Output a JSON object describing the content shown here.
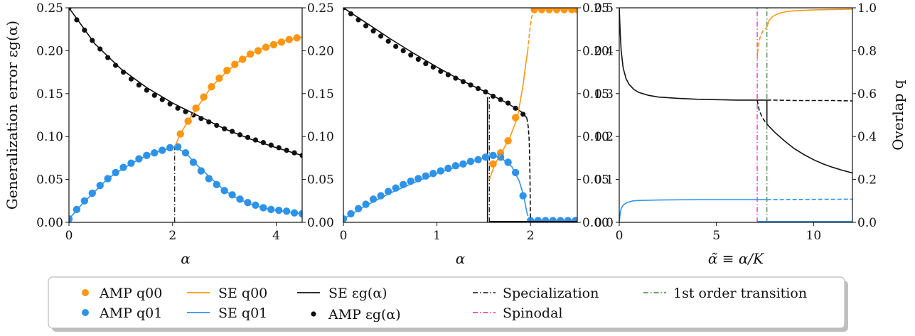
{
  "colors": {
    "orange": "#ff9610",
    "blue": "#2e93e8",
    "black": "#111111",
    "magenta": "#e020b0",
    "green": "#2f8a2f",
    "legend_border": "#bbbbbb"
  },
  "chart_data": [
    {
      "type": "line",
      "panel": "left",
      "xlabel": "α",
      "ylabel": "Generalization error εg(α)",
      "xlim": [
        0,
        4.5
      ],
      "ylim": [
        0,
        0.25
      ],
      "xticks": [
        "0",
        "2",
        "4"
      ],
      "xtick_values": [
        0,
        2,
        4
      ],
      "yticks": [
        "0.00",
        "0.05",
        "0.10",
        "0.15",
        "0.20",
        "0.25"
      ],
      "ytick_values": [
        0,
        0.05,
        0.1,
        0.15,
        0.2,
        0.25
      ],
      "right_yticks": [
        "0.00",
        "0.05",
        "0.10",
        "0.15",
        "0.20",
        "0.25"
      ],
      "specialization_x": 2.04,
      "series": [
        {
          "name": "AMP εg(α)",
          "kind": "points",
          "color": "black",
          "x": [
            0.0,
            0.15,
            0.3,
            0.45,
            0.6,
            0.75,
            0.9,
            1.05,
            1.2,
            1.35,
            1.5,
            1.65,
            1.8,
            1.95,
            2.1,
            2.25,
            2.4,
            2.55,
            2.7,
            2.85,
            3.0,
            3.15,
            3.3,
            3.45,
            3.6,
            3.75,
            3.9,
            4.05,
            4.2,
            4.35,
            4.5
          ],
          "y": [
            0.25,
            0.236,
            0.224,
            0.212,
            0.202,
            0.192,
            0.183,
            0.175,
            0.167,
            0.16,
            0.154,
            0.148,
            0.143,
            0.138,
            0.133,
            0.129,
            0.125,
            0.121,
            0.117,
            0.113,
            0.109,
            0.106,
            0.102,
            0.099,
            0.096,
            0.093,
            0.09,
            0.087,
            0.084,
            0.081,
            0.078
          ]
        },
        {
          "name": "AMP q00",
          "kind": "points",
          "color": "orange",
          "x": [
            2.15,
            2.3,
            2.45,
            2.6,
            2.75,
            2.9,
            3.05,
            3.2,
            3.35,
            3.5,
            3.65,
            3.8,
            3.95,
            4.1,
            4.25,
            4.4
          ],
          "y": [
            0.103,
            0.118,
            0.133,
            0.146,
            0.158,
            0.168,
            0.177,
            0.184,
            0.19,
            0.196,
            0.2,
            0.204,
            0.207,
            0.21,
            0.213,
            0.215
          ]
        },
        {
          "name": "AMP q01",
          "kind": "points",
          "color": "blue",
          "x": [
            0.0,
            0.15,
            0.3,
            0.45,
            0.6,
            0.75,
            0.9,
            1.05,
            1.2,
            1.35,
            1.5,
            1.65,
            1.8,
            1.95,
            2.1,
            2.25,
            2.4,
            2.55,
            2.7,
            2.85,
            3.0,
            3.15,
            3.3,
            3.45,
            3.6,
            3.75,
            3.9,
            4.05,
            4.2,
            4.35,
            4.5
          ],
          "y": [
            0.004,
            0.015,
            0.025,
            0.034,
            0.043,
            0.051,
            0.058,
            0.064,
            0.069,
            0.074,
            0.078,
            0.081,
            0.084,
            0.087,
            0.088,
            0.081,
            0.07,
            0.06,
            0.051,
            0.044,
            0.037,
            0.032,
            0.027,
            0.023,
            0.02,
            0.017,
            0.015,
            0.014,
            0.013,
            0.011,
            0.01
          ]
        },
        {
          "name": "SE εg(α)",
          "kind": "line",
          "color": "black",
          "x": [
            0,
            0.5,
            1.0,
            1.5,
            2.0,
            2.5,
            3.0,
            3.5,
            4.0,
            4.5
          ],
          "y": [
            0.25,
            0.208,
            0.179,
            0.157,
            0.139,
            0.124,
            0.109,
            0.097,
            0.087,
            0.078
          ]
        },
        {
          "name": "SE q00",
          "kind": "line",
          "color": "orange",
          "x": [
            2.04,
            2.15,
            2.3,
            2.5,
            2.75,
            3.0,
            3.25,
            3.5,
            3.75,
            4.0,
            4.25,
            4.5
          ],
          "y": [
            0.088,
            0.103,
            0.118,
            0.136,
            0.158,
            0.173,
            0.186,
            0.196,
            0.203,
            0.209,
            0.213,
            0.216
          ]
        },
        {
          "name": "SE q01",
          "kind": "line",
          "color": "blue",
          "x": [
            0,
            0.25,
            0.5,
            0.75,
            1.0,
            1.25,
            1.5,
            1.75,
            2.04,
            2.25,
            2.5,
            2.75,
            3.0,
            3.25,
            3.5,
            3.75,
            4.0,
            4.25,
            4.5
          ],
          "y": [
            0.004,
            0.021,
            0.036,
            0.051,
            0.061,
            0.07,
            0.078,
            0.083,
            0.088,
            0.081,
            0.065,
            0.051,
            0.037,
            0.028,
            0.021,
            0.017,
            0.014,
            0.012,
            0.01
          ]
        }
      ]
    },
    {
      "type": "line",
      "panel": "middle",
      "xlabel": "α",
      "xlim": [
        0,
        2.5
      ],
      "ylim": [
        0,
        0.25
      ],
      "xticks": [
        "0",
        "1",
        "2"
      ],
      "xtick_values": [
        0,
        1,
        2
      ],
      "right_yticks": [
        "0.00",
        "0.05",
        "0.10",
        "0.15",
        "0.20",
        "0.25"
      ],
      "specialization_x": 1.56,
      "transition_x": 1.54,
      "spinodal_x": 1.98,
      "series": [
        {
          "name": "AMP εg(α)",
          "kind": "points",
          "color": "black",
          "x": [
            0.0,
            0.08,
            0.16,
            0.24,
            0.32,
            0.4,
            0.48,
            0.56,
            0.64,
            0.72,
            0.8,
            0.88,
            0.96,
            1.04,
            1.12,
            1.2,
            1.28,
            1.36,
            1.44,
            1.52,
            1.6,
            1.68,
            1.76,
            1.84,
            1.92,
            2.0,
            2.08,
            2.16,
            2.24,
            2.32,
            2.4,
            2.48
          ],
          "y": [
            0.25,
            0.243,
            0.236,
            0.229,
            0.223,
            0.217,
            0.211,
            0.205,
            0.2,
            0.195,
            0.19,
            0.185,
            0.181,
            0.176,
            0.172,
            0.168,
            0.164,
            0.16,
            0.156,
            0.152,
            0.147,
            0.143,
            0.139,
            0.133,
            0.126,
            0.002,
            0.002,
            0.002,
            0.002,
            0.002,
            0.002,
            0.002
          ]
        },
        {
          "name": "AMP q00",
          "kind": "points",
          "color": "orange",
          "x": [
            1.6,
            1.68,
            1.76,
            1.84,
            2.04,
            2.12,
            2.2,
            2.28,
            2.36,
            2.44,
            2.5
          ],
          "y": [
            0.068,
            0.081,
            0.095,
            0.122,
            0.248,
            0.248,
            0.248,
            0.248,
            0.248,
            0.248,
            0.248
          ]
        },
        {
          "name": "AMP q01",
          "kind": "points",
          "color": "blue",
          "x": [
            0.0,
            0.08,
            0.16,
            0.24,
            0.32,
            0.4,
            0.48,
            0.56,
            0.64,
            0.72,
            0.8,
            0.88,
            0.96,
            1.04,
            1.12,
            1.2,
            1.28,
            1.36,
            1.44,
            1.52,
            1.6,
            1.68,
            1.76,
            1.84,
            1.92,
            2.0,
            2.08,
            2.16,
            2.24,
            2.32,
            2.4,
            2.48
          ],
          "y": [
            0.004,
            0.01,
            0.016,
            0.021,
            0.027,
            0.031,
            0.036,
            0.04,
            0.044,
            0.048,
            0.051,
            0.054,
            0.057,
            0.06,
            0.063,
            0.066,
            0.068,
            0.071,
            0.073,
            0.076,
            0.078,
            0.076,
            0.07,
            0.058,
            0.031,
            0.002,
            0.002,
            0.002,
            0.002,
            0.002,
            0.002,
            0.002
          ]
        },
        {
          "name": "SE εg(α)",
          "kind": "line",
          "color": "black",
          "x": [
            0,
            0.25,
            0.5,
            0.75,
            1.0,
            1.25,
            1.5,
            1.75,
            1.9,
            1.96
          ],
          "y": [
            0.25,
            0.232,
            0.214,
            0.197,
            0.181,
            0.166,
            0.153,
            0.139,
            0.129,
            0.122
          ]
        },
        {
          "name": "SE εg(α) metastable",
          "kind": "dashed",
          "color": "black",
          "x": [
            1.96,
            1.975,
            1.985,
            1.99,
            1.995,
            1.998,
            2.0
          ],
          "y": [
            0.122,
            0.112,
            0.098,
            0.08,
            0.05,
            0.02,
            0.0
          ]
        },
        {
          "name": "SE q00",
          "kind": "line",
          "color": "orange",
          "x": [
            1.56,
            1.62,
            1.7,
            1.78,
            1.86,
            1.92,
            1.95,
            1.97
          ],
          "y": [
            0.05,
            0.068,
            0.083,
            0.099,
            0.122,
            0.16,
            0.185,
            0.2
          ]
        },
        {
          "name": "SE q00 metastable",
          "kind": "dashed",
          "color": "orange",
          "x": [
            1.97,
            1.99,
            2.01,
            2.03,
            2.05
          ],
          "y": [
            0.2,
            0.222,
            0.238,
            0.246,
            0.249
          ]
        },
        {
          "name": "SE q00 upper",
          "kind": "line",
          "color": "orange",
          "x": [
            2.05,
            2.5
          ],
          "y": [
            0.249,
            0.249
          ]
        },
        {
          "name": "SE q01",
          "kind": "line",
          "color": "blue",
          "x": [
            0,
            0.25,
            0.5,
            0.75,
            1.0,
            1.25,
            1.5,
            1.6,
            1.7,
            1.8,
            1.88,
            1.93,
            1.96
          ],
          "y": [
            0.004,
            0.02,
            0.034,
            0.046,
            0.057,
            0.066,
            0.075,
            0.078,
            0.074,
            0.065,
            0.048,
            0.03,
            0.012
          ]
        },
        {
          "name": "SE q01 metastable",
          "kind": "dashed",
          "color": "blue",
          "x": [
            1.96,
            1.98,
            2.0
          ],
          "y": [
            0.012,
            0.005,
            0.0
          ]
        },
        {
          "name": "SE q01 lower",
          "kind": "line",
          "color": "blue",
          "x": [
            2.0,
            2.5
          ],
          "y": [
            0.002,
            0.002
          ]
        },
        {
          "name": "SE εg(α) lower",
          "kind": "line",
          "color": "black",
          "x": [
            1.56,
            2.5
          ],
          "y": [
            0.001,
            0.001
          ]
        }
      ]
    },
    {
      "type": "line",
      "panel": "right",
      "xlabel": "α̃ ≡ α/K",
      "ylabel_right": "Overlap q",
      "xlim": [
        0,
        12
      ],
      "ylim": [
        0,
        0.5
      ],
      "xticks": [
        "0",
        "5",
        "10"
      ],
      "xtick_values": [
        0,
        5,
        10
      ],
      "yticks": [
        "0.0",
        "0.1",
        "0.2",
        "0.3",
        "0.4",
        "0.5"
      ],
      "ytick_values": [
        0,
        0.1,
        0.2,
        0.3,
        0.4,
        0.5
      ],
      "right_yticks": [
        "0.0",
        "0.2",
        "0.4",
        "0.6",
        "0.8",
        "1.0"
      ],
      "spinodal_x": 7.1,
      "transition_x": 7.6,
      "series": [
        {
          "name": "SE εg(α)",
          "kind": "line",
          "color": "black",
          "x": [
            0,
            0.05,
            0.1,
            0.2,
            0.35,
            0.5,
            0.75,
            1.0,
            1.5,
            2.0,
            3.0,
            4.0,
            5.0,
            6.0,
            7.0,
            7.6
          ],
          "y": [
            0.5,
            0.44,
            0.4,
            0.36,
            0.335,
            0.322,
            0.31,
            0.303,
            0.296,
            0.292,
            0.289,
            0.287,
            0.286,
            0.285,
            0.285,
            0.285
          ]
        },
        {
          "name": "SE εg(α) metastable",
          "kind": "dashed",
          "color": "black",
          "x": [
            7.6,
            8,
            9,
            10,
            11,
            12
          ],
          "y": [
            0.285,
            0.285,
            0.284,
            0.284,
            0.284,
            0.283
          ]
        },
        {
          "name": "SE εg spinodal branch",
          "kind": "dashed",
          "color": "black",
          "x": [
            7.1,
            7.2,
            7.35,
            7.5,
            7.6
          ],
          "y": [
            0.285,
            0.262,
            0.245,
            0.235,
            0.229
          ]
        },
        {
          "name": "SE εg specialized",
          "kind": "line",
          "color": "black",
          "x": [
            7.6,
            8,
            8.5,
            9,
            9.5,
            10,
            10.5,
            11,
            11.5,
            12
          ],
          "y": [
            0.229,
            0.21,
            0.19,
            0.172,
            0.158,
            0.146,
            0.136,
            0.128,
            0.121,
            0.115
          ]
        },
        {
          "name": "SE εg transition",
          "kind": "line",
          "color": "black",
          "x": [
            7.6,
            7.6
          ],
          "y": [
            0.285,
            0.229
          ]
        },
        {
          "name": "SE q00",
          "kind": "line",
          "color": "orange",
          "x": [
            7.6,
            7.7,
            7.9,
            8.2,
            8.6,
            9,
            10,
            11,
            12
          ],
          "y": [
            0.455,
            0.47,
            0.48,
            0.487,
            0.491,
            0.493,
            0.495,
            0.496,
            0.497
          ]
        },
        {
          "name": "SE q00 metastable",
          "kind": "dashed",
          "color": "orange",
          "x": [
            7.1,
            7.15,
            7.25,
            7.4,
            7.6
          ],
          "y": [
            0.38,
            0.41,
            0.432,
            0.447,
            0.455
          ]
        },
        {
          "name": "SE q01",
          "kind": "line",
          "color": "blue",
          "x": [
            0,
            0.05,
            0.1,
            0.2,
            0.4,
            0.7,
            1.0,
            2.0,
            4.0,
            7.6
          ],
          "y": [
            0.0,
            0.022,
            0.032,
            0.04,
            0.046,
            0.05,
            0.051,
            0.052,
            0.053,
            0.053
          ]
        },
        {
          "name": "SE q01 metastable",
          "kind": "dashed",
          "color": "blue",
          "x": [
            7.6,
            12
          ],
          "y": [
            0.053,
            0.054
          ]
        },
        {
          "name": "SE q01 specialized",
          "kind": "line",
          "color": "blue",
          "x": [
            7.1,
            12
          ],
          "y": [
            0.002,
            0.002
          ]
        }
      ]
    }
  ],
  "legend": {
    "entries": [
      {
        "key": "amp_q00",
        "label": "AMP q00",
        "marker": "dot",
        "color": "orange"
      },
      {
        "key": "amp_q01",
        "label": "AMP q01",
        "marker": "dot",
        "color": "blue"
      },
      {
        "key": "se_q00",
        "label": "SE q00",
        "marker": "line",
        "color": "orange"
      },
      {
        "key": "se_q01",
        "label": "SE q01",
        "marker": "line",
        "color": "blue"
      },
      {
        "key": "se_eg",
        "label": "SE εg(α)",
        "marker": "line",
        "color": "black"
      },
      {
        "key": "amp_eg",
        "label": "AMP εg(α)",
        "marker": "smalldot",
        "color": "black"
      },
      {
        "key": "specialization",
        "label": "Specialization",
        "marker": "dashdot",
        "color": "black"
      },
      {
        "key": "spinodal",
        "label": "Spinodal",
        "marker": "dashdot",
        "color": "magenta"
      },
      {
        "key": "first_order",
        "label": "1st order transition",
        "marker": "dashdot",
        "color": "green"
      }
    ]
  }
}
